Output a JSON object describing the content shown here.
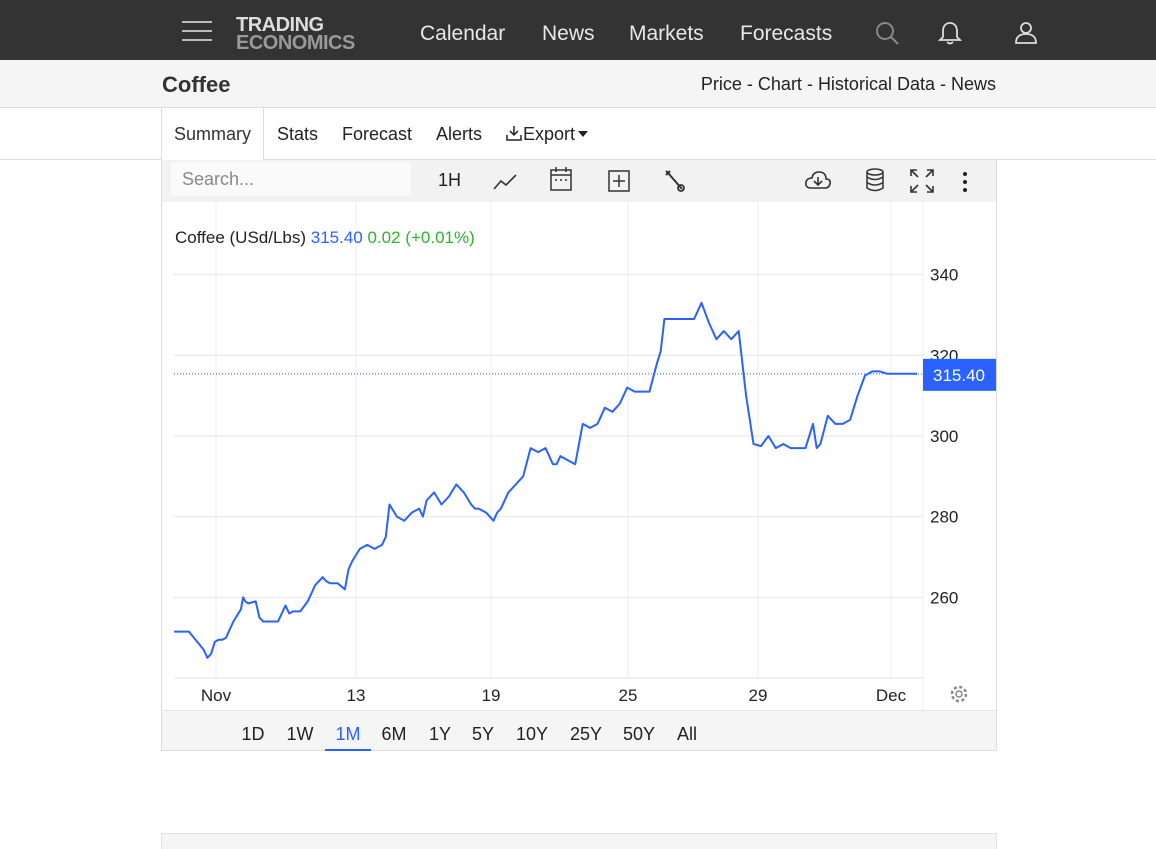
{
  "navbar": {
    "logo_line1": "TRADING",
    "logo_line2": "ECONOMICS",
    "links": [
      "Calendar",
      "News",
      "Markets",
      "Forecasts"
    ]
  },
  "subheader": {
    "title": "Coffee",
    "links": [
      "Price",
      "Chart",
      "Historical Data",
      "News"
    ],
    "separator": "-"
  },
  "tabs": {
    "summary": "Summary",
    "stats": "Stats",
    "forecast": "Forecast",
    "alerts": "Alerts",
    "export": "Export"
  },
  "toolbar": {
    "search_placeholder": "Search...",
    "interval": "1H"
  },
  "legend": {
    "name": "Coffee (USd/Lbs)",
    "last": "315.40",
    "change": "0.02 (+0.01%)"
  },
  "ranges": [
    "1D",
    "1W",
    "1M",
    "6M",
    "1Y",
    "5Y",
    "10Y",
    "25Y",
    "50Y",
    "All"
  ],
  "active_range": "1M",
  "colors": {
    "navbar_bg": "#333333",
    "series_line": "#2962ff",
    "change_positive": "#2db32d",
    "price_label_bg": "#2962ff"
  },
  "chart_data": {
    "type": "line",
    "x_tick_labels": [
      "Nov",
      "13",
      "19",
      "25",
      "29",
      "Dec"
    ],
    "y_ticks": [
      260,
      280,
      300,
      320,
      340
    ],
    "ylim": [
      240,
      358
    ],
    "grid": true,
    "last_value": 315.4,
    "last_value_label": "315.40",
    "series": [
      {
        "x": [
          0,
          2,
          4,
          4.5,
          5,
          5.5,
          6,
          6.5,
          7,
          8,
          9,
          9.3,
          9.6,
          10,
          11,
          11.5,
          12,
          13,
          14,
          15,
          15.5,
          16,
          17,
          18,
          19,
          20,
          20.5,
          21,
          22,
          23,
          23.5,
          24,
          25,
          26,
          27,
          28,
          28.5,
          29,
          30,
          31,
          32,
          33,
          33.5,
          34,
          35,
          36,
          37,
          38,
          39,
          40,
          40.5,
          41,
          42,
          43,
          43.5,
          44,
          45,
          46,
          47,
          48,
          49,
          50,
          51,
          51.5,
          52,
          53,
          54,
          55,
          56,
          56.5,
          57,
          58,
          59,
          60,
          61,
          62,
          63,
          64,
          65,
          65.5,
          66,
          67,
          68,
          69,
          70,
          71,
          72,
          73,
          74,
          75,
          76,
          77,
          78,
          79,
          80,
          81,
          82,
          83,
          84,
          85,
          86,
          86.5,
          87,
          88,
          89,
          90,
          91,
          92,
          93,
          94,
          95,
          96,
          97,
          98,
          99,
          100
        ],
        "y": [
          251.5,
          251.5,
          247,
          245,
          246,
          249,
          249.5,
          249.5,
          250,
          254,
          257,
          260,
          259,
          258.5,
          259,
          255,
          254,
          254,
          254,
          258,
          256,
          256.5,
          256.5,
          259,
          263,
          265,
          264,
          263.5,
          263.5,
          262,
          267,
          269,
          272,
          273,
          272,
          273,
          275,
          283,
          280,
          279,
          281,
          282,
          280,
          284,
          286,
          283,
          285,
          288,
          286,
          283,
          282,
          282,
          281,
          279,
          281,
          282,
          286,
          288,
          290,
          297,
          296,
          297,
          293,
          293,
          295,
          294,
          293,
          303,
          302,
          302.5,
          303,
          307,
          306,
          308,
          312,
          311,
          311,
          311,
          318,
          321,
          329,
          329,
          329,
          329,
          329,
          333,
          328,
          324,
          326,
          324,
          326,
          310,
          298,
          297.5,
          300,
          297,
          298,
          297,
          297,
          297,
          303,
          297,
          298,
          305,
          303,
          303,
          304,
          310,
          315,
          316,
          316,
          315.4,
          315.4,
          315.4,
          315.4,
          315.4
        ]
      }
    ]
  }
}
